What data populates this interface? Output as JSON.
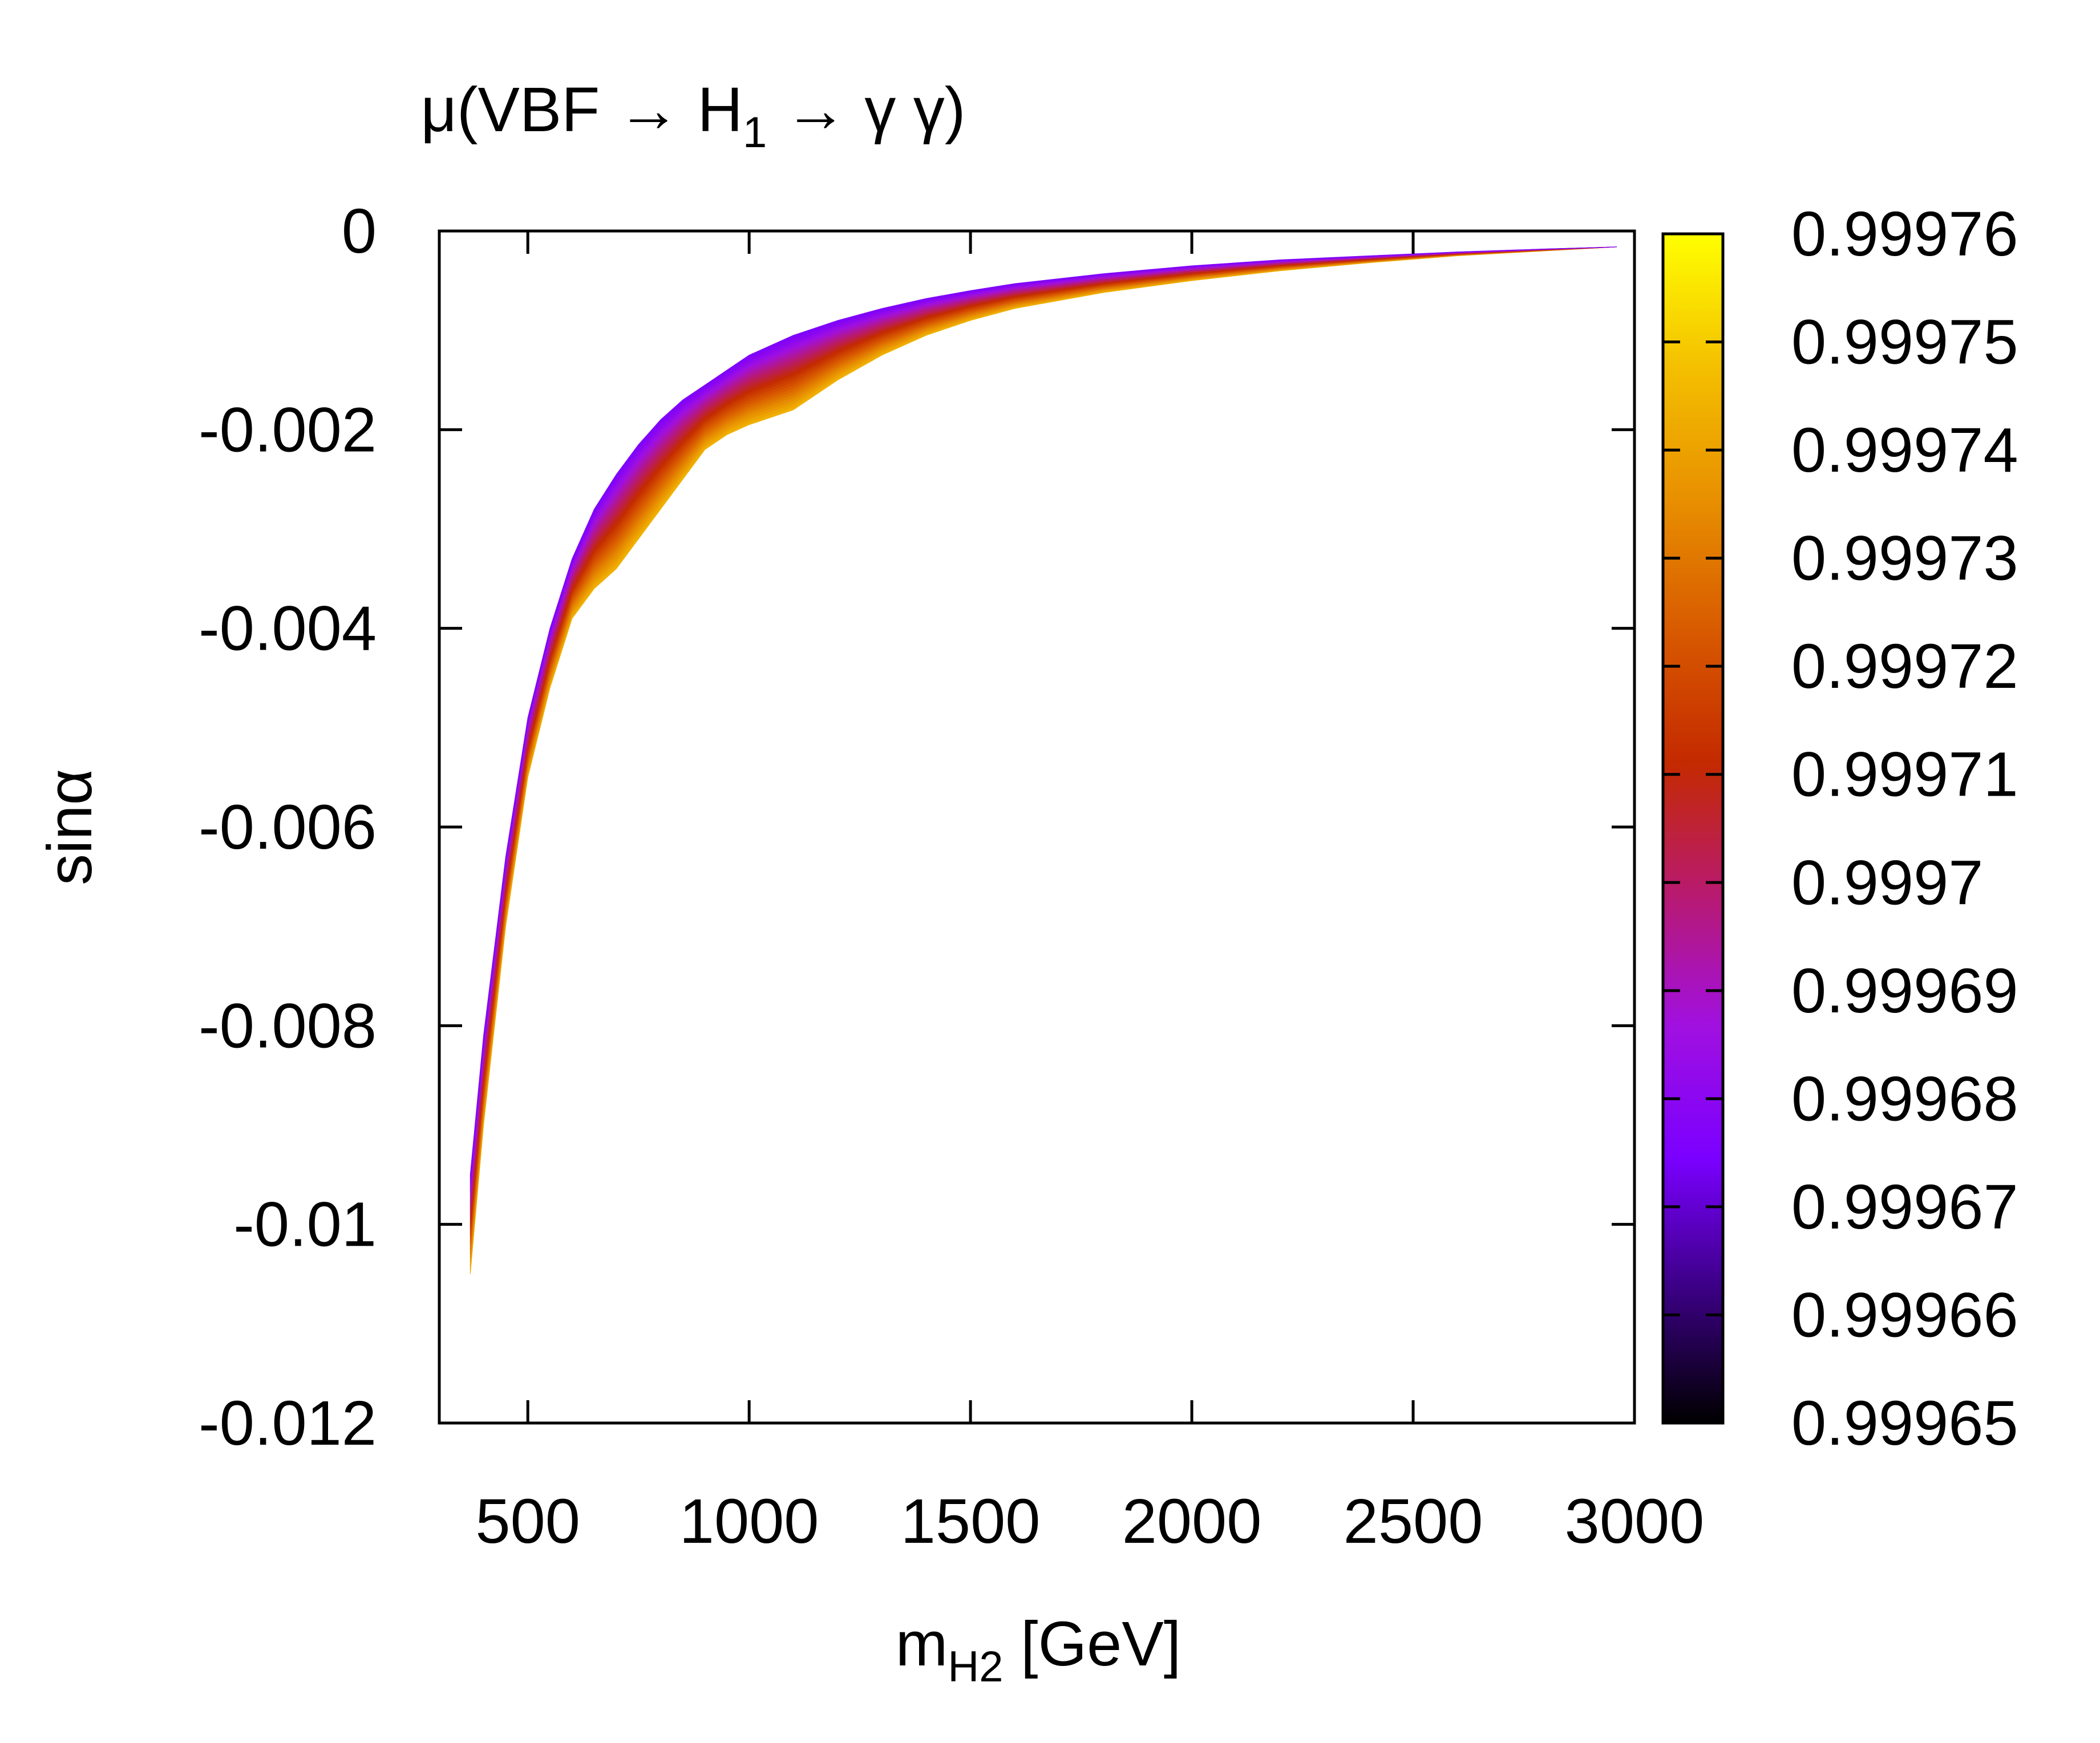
{
  "chart_data": {
    "type": "heatmap",
    "title": {
      "prefix": "μ(VBF → H",
      "sub": "1",
      "suffix": " →  γ γ)"
    },
    "xlabel": {
      "main": "m",
      "sub": "H2",
      "unit": " [GeV]"
    },
    "ylabel": "sinα",
    "xlim": [
      300,
      3000
    ],
    "ylim": [
      -0.012,
      0
    ],
    "xticks": [
      500,
      1000,
      1500,
      2000,
      2500,
      3000
    ],
    "xtick_labels": [
      "500",
      "1000",
      "1500",
      "2000",
      "2500",
      "3000"
    ],
    "yticks": [
      0,
      -0.002,
      -0.004,
      -0.006,
      -0.008,
      -0.01,
      -0.012
    ],
    "ytick_labels": [
      "0",
      "-0.002",
      "-0.004",
      "-0.006",
      "-0.008",
      "-0.01",
      "-0.012"
    ],
    "colorbar": {
      "range": [
        0.99965,
        0.99976
      ],
      "ticks": [
        0.99965,
        0.99966,
        0.99967,
        0.99968,
        0.99969,
        0.9997,
        0.99971,
        0.99972,
        0.99973,
        0.99974,
        0.99975,
        0.99976
      ],
      "tick_labels": [
        "0.99965",
        "0.99966",
        "0.99967",
        "0.99968",
        "0.99969",
        "0.9997",
        "0.99971",
        "0.99972",
        "0.99973",
        "0.99974",
        "0.99975",
        "0.99976"
      ],
      "palette": [
        "#000000",
        "#3a0082",
        "#7a00ff",
        "#a010e0",
        "#b81a70",
        "#c42a00",
        "#d85a00",
        "#e89000",
        "#f4c000",
        "#ffff00"
      ]
    },
    "band": {
      "description_x": [
        370,
        400,
        450,
        500,
        550,
        600,
        650,
        700,
        750,
        800,
        850,
        900,
        950,
        1000,
        1100,
        1200,
        1300,
        1400,
        1500,
        1600,
        1800,
        2000,
        2200,
        2400,
        2600,
        2800,
        2960
      ],
      "upper_sinalpha": [
        -0.0095,
        -0.0081,
        -0.0063,
        -0.0049,
        -0.004,
        -0.0033,
        -0.0028,
        -0.00245,
        -0.00215,
        -0.0019,
        -0.0017,
        -0.00155,
        -0.0014,
        -0.00125,
        -0.00105,
        -0.0009,
        -0.00078,
        -0.00068,
        -0.0006,
        -0.00053,
        -0.00043,
        -0.00035,
        -0.00029,
        -0.00025,
        -0.00021,
        -0.00018,
        -0.00016
      ],
      "lower_sinalpha": [
        -0.0105,
        -0.009,
        -0.007,
        -0.0055,
        -0.0046,
        -0.0039,
        -0.0036,
        -0.0034,
        -0.0031,
        -0.0028,
        -0.0025,
        -0.0022,
        -0.00205,
        -0.00195,
        -0.0018,
        -0.0015,
        -0.00125,
        -0.00105,
        -0.0009,
        -0.00078,
        -0.00062,
        -0.0005,
        -0.0004,
        -0.00032,
        -0.00025,
        -0.0002,
        -0.00016
      ],
      "value_at_upper": 0.999675,
      "value_at_lower": 0.999745
    }
  }
}
